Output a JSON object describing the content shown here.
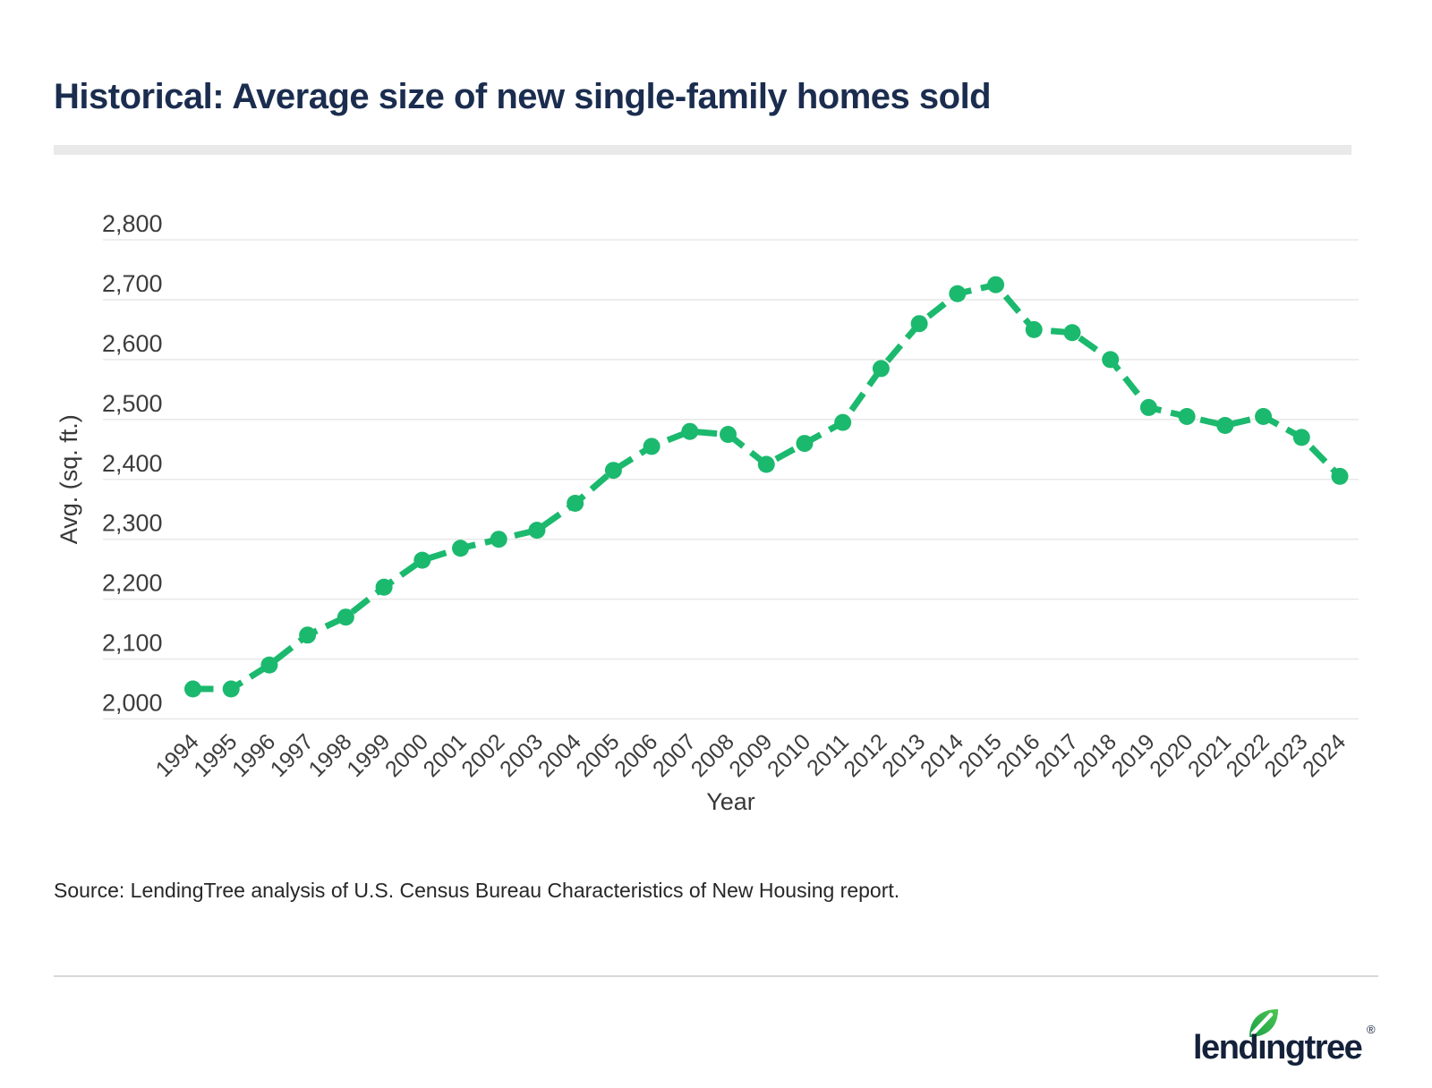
{
  "page": {
    "title": "Historical: Average size of new single-family homes sold",
    "source_note": "Source: LendingTree analysis of U.S. Census Bureau Characteristics of New Housing report."
  },
  "logo": {
    "text": "lendingtree",
    "registered_mark": "®"
  },
  "colors": {
    "title_navy": "#1b2d4f",
    "logo_navy": "#14213a",
    "line_green": "#1bb96e",
    "grid_gray": "#e8e8e8",
    "tick_text_gray": "#3d3d3d",
    "axis_title_gray": "#383838",
    "title_underbar_gray": "#e9e9e9",
    "divider_gray": "#d8d8d8",
    "leaf_green_dark": "#1d9e49",
    "leaf_green_light": "#4cc750"
  },
  "chart_data": {
    "type": "line",
    "title": "",
    "xlabel": "Year",
    "ylabel": "Avg. (sq. ft.)",
    "x": [
      1994,
      1995,
      1996,
      1997,
      1998,
      1999,
      2000,
      2001,
      2002,
      2003,
      2004,
      2005,
      2006,
      2007,
      2008,
      2009,
      2010,
      2011,
      2012,
      2013,
      2014,
      2015,
      2016,
      2017,
      2018,
      2019,
      2020,
      2021,
      2022,
      2023,
      2024
    ],
    "values": [
      2050,
      2050,
      2090,
      2140,
      2170,
      2220,
      2265,
      2285,
      2300,
      2315,
      2360,
      2415,
      2455,
      2480,
      2475,
      2425,
      2460,
      2495,
      2585,
      2660,
      2710,
      2725,
      2650,
      2645,
      2600,
      2520,
      2505,
      2490,
      2505,
      2470,
      2405
    ],
    "ylim": [
      2000,
      2800
    ],
    "ytick_step": 100,
    "grid": true,
    "line_style": "dashed",
    "marker": "circle",
    "legend": "none"
  }
}
